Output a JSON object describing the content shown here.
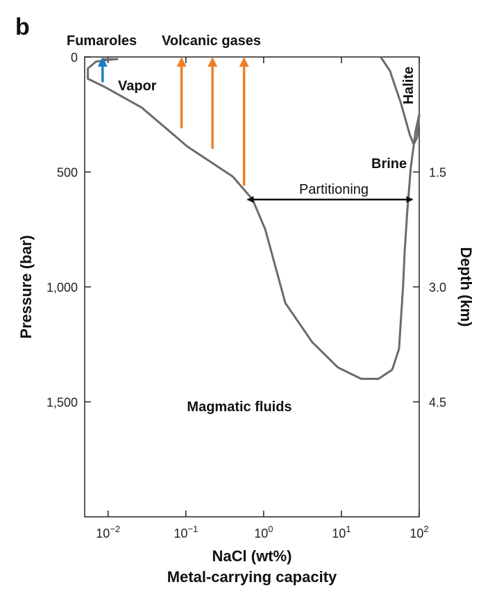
{
  "panel_label": "b",
  "chart_data": {
    "type": "line",
    "title": "",
    "xlabel": "NaCl (wt%)",
    "xlabel2": "Metal-carrying capacity",
    "ylabel": "Pressure (bar)",
    "y2label": "Depth (km)",
    "x_scale": "log",
    "xlim": [
      0.005,
      100
    ],
    "ylim": [
      0,
      2000
    ],
    "y_reversed": true,
    "x_ticks": [
      {
        "value": 0.01,
        "base": "10",
        "exp": "−2"
      },
      {
        "value": 0.1,
        "base": "10",
        "exp": "−1"
      },
      {
        "value": 1,
        "base": "10",
        "exp": "0"
      },
      {
        "value": 10,
        "base": "10",
        "exp": "1"
      },
      {
        "value": 100,
        "base": "10",
        "exp": "2"
      }
    ],
    "y_ticks": [
      {
        "value": 0,
        "label": "0"
      },
      {
        "value": 500,
        "label": "500"
      },
      {
        "value": 1000,
        "label": "1,000"
      },
      {
        "value": 1500,
        "label": "1,500"
      }
    ],
    "y2_ticks": [
      {
        "value": 500,
        "label": "1.5"
      },
      {
        "value": 1000,
        "label": "3.0"
      },
      {
        "value": 1500,
        "label": "4.5"
      }
    ],
    "series": [
      {
        "color": "#6b6b6b",
        "points": [
          [
            0.012,
            10
          ],
          [
            0.007,
            20
          ],
          [
            0.0055,
            50
          ],
          [
            0.0055,
            95
          ],
          [
            0.009,
            130
          ],
          [
            0.027,
            220
          ],
          [
            0.105,
            390
          ],
          [
            0.4,
            520
          ],
          [
            0.72,
            620
          ],
          [
            1.05,
            750
          ],
          [
            1.9,
            1070
          ],
          [
            4.2,
            1240
          ],
          [
            9,
            1350
          ],
          [
            18,
            1400
          ],
          [
            30,
            1400
          ],
          [
            45,
            1360
          ],
          [
            55,
            1270
          ],
          [
            62,
            1000
          ],
          [
            65,
            850
          ],
          [
            70,
            680
          ],
          [
            78,
            480
          ],
          [
            90,
            320
          ],
          [
            100,
            250
          ],
          [
            94,
            350
          ],
          [
            85,
            380
          ],
          [
            76,
            340
          ],
          [
            58,
            200
          ],
          [
            42,
            60
          ],
          [
            32,
            0
          ]
        ]
      }
    ],
    "arrows": [
      {
        "label_key": "fumaroles",
        "x": 0.0085,
        "y_from": 110,
        "y_to": 0,
        "color": "#1a7fc1"
      },
      {
        "label_key": "volcanic",
        "x": 0.088,
        "y_from": 310,
        "y_to": 0,
        "color": "#f07e26"
      },
      {
        "label_key": "volcanic",
        "x": 0.22,
        "y_from": 400,
        "y_to": 0,
        "color": "#f07e26"
      },
      {
        "label_key": "volcanic",
        "x": 0.56,
        "y_from": 560,
        "y_to": 0,
        "color": "#f07e26"
      }
    ],
    "annotations": {
      "fumaroles": {
        "text": "Fumaroles",
        "color": "#1a7fc1"
      },
      "volcanic": {
        "text": "Volcanic gases",
        "color": "#f07e26"
      },
      "vapor": {
        "text": "Vapor"
      },
      "halite": {
        "text": "Halite"
      },
      "brine": {
        "text": "Brine"
      },
      "partitioning": {
        "text": "Partitioning",
        "x_from": 0.62,
        "x_to": 82,
        "y": 620
      },
      "magmatic": {
        "text": "Magmatic fluids",
        "color": "#b3232a"
      }
    }
  }
}
